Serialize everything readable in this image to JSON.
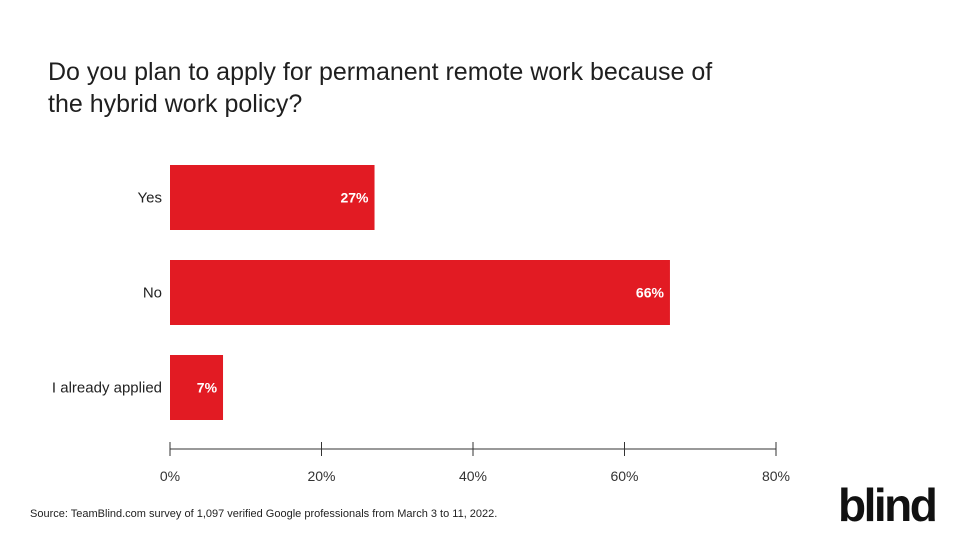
{
  "chart_data": {
    "type": "bar",
    "orientation": "horizontal",
    "title_lines": [
      "Do you plan to apply for permanent remote work because of",
      "the hybrid work policy?"
    ],
    "categories": [
      "Yes",
      "No",
      "I already applied"
    ],
    "values": [
      27,
      66,
      7
    ],
    "data_labels": [
      "27%",
      "66%",
      "7%"
    ],
    "xlim": [
      0,
      80
    ],
    "ticks": [
      0,
      20,
      40,
      60,
      80
    ],
    "tick_labels": [
      "0%",
      "20%",
      "40%",
      "60%",
      "80%"
    ],
    "bar_color": "#e21b23",
    "grid": false,
    "legend": "none"
  },
  "source": "Source: TeamBlind.com survey of 1,097 verified Google professionals from March 3 to 11, 2022.",
  "logo": "blind"
}
